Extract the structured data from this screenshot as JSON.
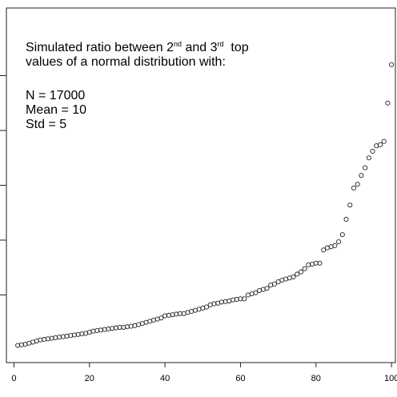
{
  "chart_data": {
    "type": "scatter",
    "title": "",
    "xlabel": "",
    "ylabel": "",
    "xlim": [
      -2,
      100
    ],
    "ylim": [
      1.0,
      1.6
    ],
    "x_ticks": [
      0,
      20,
      40,
      60,
      80,
      100
    ],
    "x_tick_labels": [
      "0",
      "20",
      "40",
      "60",
      "80",
      "100"
    ],
    "y_ticks": [
      1.1,
      1.2,
      1.3,
      1.4,
      1.5
    ],
    "annotation": {
      "line1_a": "Simulated ratio between 2",
      "line1_sup1": "nd",
      "line1_b": " and 3",
      "line1_sup2": "rd",
      "line1_c": "  top",
      "line2": "values of a normal distribution with:",
      "line3": "N = 17000",
      "line4": "Mean = 10",
      "line5": "Std = 5"
    },
    "series": [
      {
        "marker": "open-circle",
        "x": [
          1,
          2,
          3,
          4,
          5,
          6,
          7,
          8,
          9,
          10,
          11,
          12,
          13,
          14,
          15,
          16,
          17,
          18,
          19,
          20,
          21,
          22,
          23,
          24,
          25,
          26,
          27,
          28,
          29,
          30,
          31,
          32,
          33,
          34,
          35,
          36,
          37,
          38,
          39,
          40,
          41,
          42,
          43,
          44,
          45,
          46,
          47,
          48,
          49,
          50,
          51,
          52,
          53,
          54,
          55,
          56,
          57,
          58,
          59,
          60,
          61,
          62,
          63,
          64,
          65,
          66,
          67,
          68,
          69,
          70,
          71,
          72,
          73,
          74,
          75,
          76,
          77,
          78,
          79,
          80,
          81,
          82,
          83,
          84,
          85,
          86,
          87,
          88,
          89,
          90,
          91,
          92,
          93,
          94,
          95,
          96,
          97,
          98,
          99,
          100
        ],
        "y": [
          1.008,
          1.009,
          1.01,
          1.012,
          1.014,
          1.016,
          1.018,
          1.019,
          1.02,
          1.021,
          1.022,
          1.023,
          1.024,
          1.025,
          1.026,
          1.027,
          1.028,
          1.029,
          1.03,
          1.032,
          1.034,
          1.035,
          1.036,
          1.037,
          1.038,
          1.039,
          1.04,
          1.041,
          1.041,
          1.042,
          1.043,
          1.044,
          1.046,
          1.048,
          1.05,
          1.052,
          1.054,
          1.056,
          1.058,
          1.062,
          1.063,
          1.064,
          1.065,
          1.066,
          1.066,
          1.068,
          1.07,
          1.072,
          1.074,
          1.076,
          1.078,
          1.082,
          1.084,
          1.085,
          1.087,
          1.088,
          1.089,
          1.091,
          1.092,
          1.093,
          1.093,
          1.1,
          1.102,
          1.104,
          1.108,
          1.11,
          1.112,
          1.118,
          1.12,
          1.124,
          1.127,
          1.129,
          1.131,
          1.133,
          1.138,
          1.142,
          1.148,
          1.155,
          1.156,
          1.158,
          1.158,
          1.182,
          1.186,
          1.188,
          1.19,
          1.197,
          1.21,
          1.238,
          1.264,
          1.295,
          1.302,
          1.318,
          1.332,
          1.35,
          1.362,
          1.372,
          1.374,
          1.38,
          1.45,
          1.52
        ]
      }
    ]
  }
}
